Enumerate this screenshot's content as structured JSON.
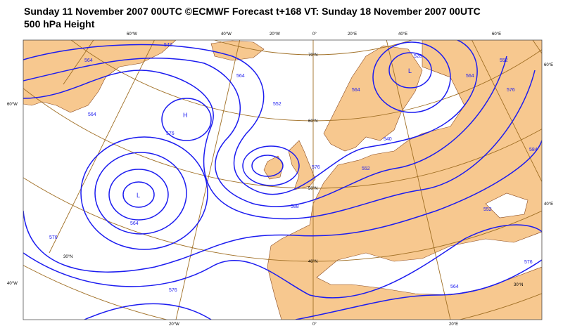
{
  "header": {
    "title": "Sunday 11 November 2007 00UTC ©ECMWF Forecast t+168 VT: Sunday 18 November 2007 00UTC",
    "subtitle": "500 hPa Height"
  },
  "graticule_labels": [
    "60°W",
    "40°W",
    "20°W",
    "0°",
    "20°E",
    "40°E",
    "60°E",
    "60°W",
    "40°W",
    "60°E",
    "40°E",
    "20°W",
    "0°",
    "20°E",
    "70°N",
    "60°N",
    "50°N",
    "40°N",
    "30°N",
    "30°N"
  ],
  "contour_labels": [
    "540",
    "564",
    "564",
    "576",
    "564",
    "576",
    "552",
    "564",
    "588",
    "552",
    "564",
    "576",
    "576",
    "540",
    "528",
    "552",
    "564",
    "576",
    "584",
    "552",
    "576",
    "564"
  ],
  "centers": [
    "H",
    "L",
    "L"
  ]
}
